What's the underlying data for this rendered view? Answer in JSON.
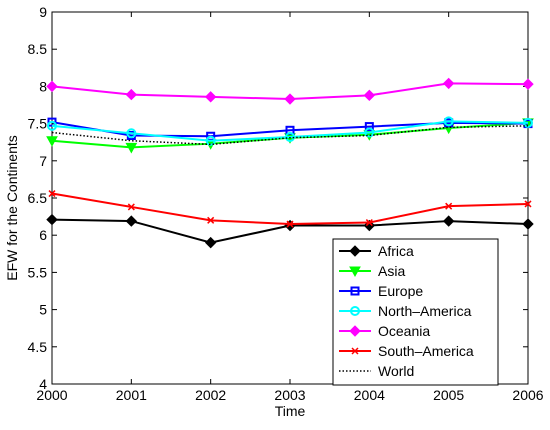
{
  "chart_data": {
    "type": "line",
    "title": "",
    "xlabel": "Time",
    "ylabel": "EFW for the Continents",
    "xlim": [
      2000,
      2006
    ],
    "ylim": [
      4,
      9
    ],
    "x": [
      2000,
      2001,
      2002,
      2003,
      2004,
      2005,
      2006
    ],
    "x_ticks": [
      "2000",
      "2001",
      "2002",
      "2003",
      "2004",
      "2005",
      "2006"
    ],
    "y_ticks": [
      "4",
      "4.5",
      "5",
      "5.5",
      "6",
      "6.5",
      "7",
      "7.5",
      "8",
      "8.5",
      "9"
    ],
    "grid": false,
    "legend_position": "bottom-right",
    "series": [
      {
        "name": "Africa",
        "color": "#000000",
        "marker": "diamond",
        "dash": "solid",
        "values": [
          6.21,
          6.19,
          5.9,
          6.13,
          6.13,
          6.19,
          6.15
        ]
      },
      {
        "name": "Asia",
        "color": "#00ff00",
        "marker": "triangle-down",
        "dash": "solid",
        "values": [
          7.27,
          7.18,
          7.23,
          7.31,
          7.35,
          7.44,
          7.51
        ]
      },
      {
        "name": "Europe",
        "color": "#0000ff",
        "marker": "square",
        "dash": "solid",
        "values": [
          7.52,
          7.34,
          7.33,
          7.41,
          7.46,
          7.51,
          7.5
        ]
      },
      {
        "name": "North–America",
        "color": "#00ffff",
        "marker": "circle",
        "dash": "solid",
        "values": [
          7.47,
          7.37,
          7.27,
          7.32,
          7.38,
          7.53,
          7.51
        ]
      },
      {
        "name": "Oceania",
        "color": "#ff00ff",
        "marker": "diamond",
        "dash": "solid",
        "values": [
          8.0,
          7.89,
          7.86,
          7.83,
          7.88,
          8.04,
          8.03
        ]
      },
      {
        "name": "South–America",
        "color": "#ff0000",
        "marker": "x",
        "dash": "solid",
        "values": [
          6.56,
          6.38,
          6.2,
          6.15,
          6.17,
          6.39,
          6.42
        ]
      },
      {
        "name": "World",
        "color": "#000000",
        "marker": "none",
        "dash": "dotted",
        "values": [
          7.38,
          7.27,
          7.22,
          7.31,
          7.34,
          7.45,
          7.47
        ]
      }
    ]
  }
}
